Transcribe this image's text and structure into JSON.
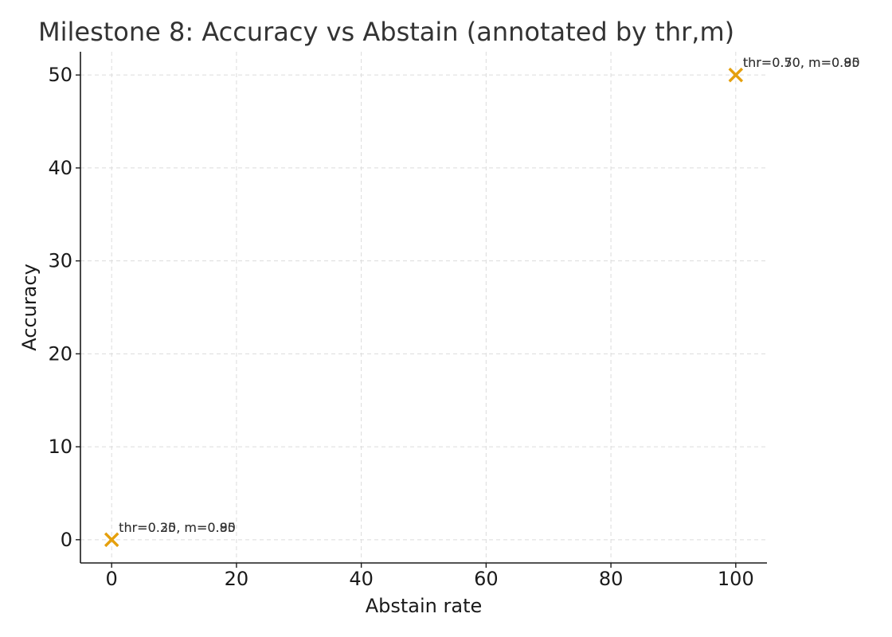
{
  "chart_data": {
    "type": "scatter",
    "title": "Milestone 8: Accuracy vs Abstain (annotated by thr,m)",
    "xlabel": "Abstain rate",
    "ylabel": "Accuracy",
    "xlim": [
      -5,
      105
    ],
    "ylim": [
      -2.5,
      52.5
    ],
    "xticks": [
      0,
      20,
      40,
      60,
      80,
      100
    ],
    "yticks": [
      0,
      10,
      20,
      30,
      40,
      50
    ],
    "grid": true,
    "marker": "x",
    "color": "#E5A00D",
    "points": [
      {
        "x": 0,
        "y": 0,
        "label": "thr=0.20, m=0.80"
      },
      {
        "x": 0,
        "y": 0,
        "label": "thr=0.35, m=0.95"
      },
      {
        "x": 100,
        "y": 50,
        "label": "thr=0.50, m=0.80"
      },
      {
        "x": 100,
        "y": 50,
        "label": "thr=0.70, m=0.95"
      }
    ]
  }
}
